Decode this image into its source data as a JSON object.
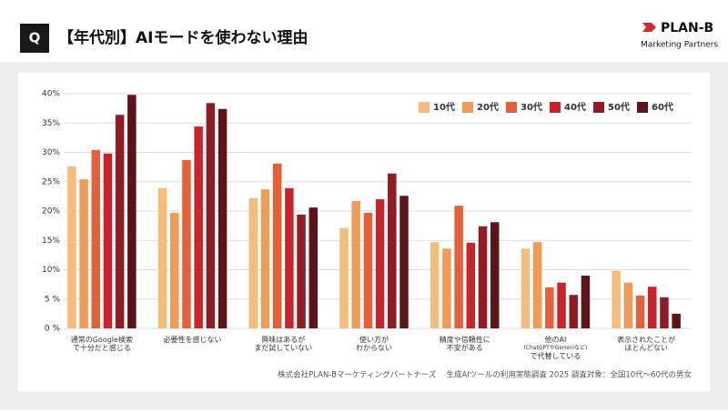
{
  "header": {
    "badge": "Q",
    "title": "【年代別】AIモードを使わない理由",
    "logo": "PLAN-B",
    "logo_sub": "Marketing Partners"
  },
  "chart_data": {
    "type": "bar",
    "categories": [
      [
        "通常のGoogle検索",
        "で十分だと感じる"
      ],
      [
        "必要性を感じない"
      ],
      [
        "興味はあるが",
        "まだ試していない"
      ],
      [
        "使い方が",
        "わからない"
      ],
      [
        "精度や信頼性に",
        "不安がある"
      ],
      [
        "他のAI",
        "(ChatGPTやGeminiなど)",
        "で代替している"
      ],
      [
        "表示されたことが",
        "ほとんどない"
      ]
    ],
    "series": [
      {
        "name": "10代",
        "color": "#f4bd7e",
        "values": [
          27.6,
          23.9,
          22.2,
          17.1,
          14.7,
          13.6,
          9.8
        ]
      },
      {
        "name": "20代",
        "color": "#ee9c57",
        "values": [
          25.4,
          19.7,
          23.7,
          21.7,
          13.6,
          14.7,
          7.8
        ]
      },
      {
        "name": "30代",
        "color": "#e2613a",
        "values": [
          30.4,
          28.7,
          28.1,
          19.7,
          20.9,
          7.0,
          5.6
        ]
      },
      {
        "name": "40代",
        "color": "#c9232c",
        "values": [
          29.8,
          34.4,
          23.9,
          22.0,
          14.6,
          7.8,
          7.1
        ]
      },
      {
        "name": "50代",
        "color": "#8f1c25",
        "values": [
          36.4,
          38.4,
          19.4,
          26.4,
          17.4,
          5.7,
          5.3
        ]
      },
      {
        "name": "60代",
        "color": "#5b1519",
        "values": [
          39.8,
          37.4,
          20.6,
          22.6,
          18.1,
          9.0,
          2.5
        ]
      }
    ],
    "ylim": [
      0,
      40
    ],
    "yticks": [
      {
        "value": 0,
        "label": "0 %"
      },
      {
        "value": 5,
        "label": "5 %"
      },
      {
        "value": 10,
        "label": "10%"
      },
      {
        "value": 15,
        "label": "15%"
      },
      {
        "value": 20,
        "label": "20%"
      },
      {
        "value": 25,
        "label": "25%"
      },
      {
        "value": 30,
        "label": "30%"
      },
      {
        "value": 35,
        "label": "35%"
      },
      {
        "value": 40,
        "label": "40%"
      }
    ],
    "grid": true,
    "legend": "top-right",
    "source": "株式会社PLAN-Bマーケティングパートナーズ　 生成AIツールの利用実態調査 2025 調査対象：全国10代〜60代の男女"
  }
}
